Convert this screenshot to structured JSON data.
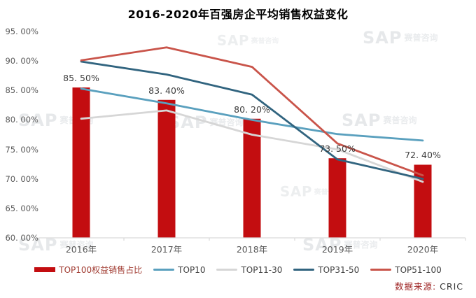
{
  "chart_data": {
    "type": "combo_bar_line",
    "title": "2016-2020年百强房企平均销售权益变化",
    "categories": [
      "2016年",
      "2017年",
      "2018年",
      "2019年",
      "2020年"
    ],
    "y_axis": {
      "range": [
        60,
        95
      ],
      "ticks": [
        {
          "value": 95,
          "label": "95. 00%"
        },
        {
          "value": 90,
          "label": "90. 00%"
        },
        {
          "value": 85,
          "label": "85. 00%"
        },
        {
          "value": 80,
          "label": "80. 00%"
        },
        {
          "value": 75,
          "label": "75. 00%"
        },
        {
          "value": 70,
          "label": "70. 00%"
        },
        {
          "value": 65,
          "label": "65. 00%"
        },
        {
          "value": 60,
          "label": "60. 00%"
        }
      ]
    },
    "grid": false,
    "legend_position": "bottom",
    "axis_color": "#d9d9d9",
    "bar_series": {
      "name": "TOP100权益销售占比",
      "color": "#c30d10",
      "label_color": "#a03a30",
      "values": [
        85.5,
        83.4,
        80.2,
        73.5,
        72.4
      ],
      "labels": [
        "85. 50%",
        "83. 40%",
        "80. 20%",
        "73. 50%",
        "72. 40%"
      ]
    },
    "line_series": [
      {
        "name": "TOP10",
        "color": "#5aa0be",
        "label_color": "#404040",
        "values": [
          85.3,
          82.8,
          80.0,
          77.6,
          76.5
        ]
      },
      {
        "name": "TOP11-30",
        "color": "#d6d6d6",
        "label_color": "#404040",
        "values": [
          80.2,
          81.6,
          77.5,
          75.0,
          69.5
        ]
      },
      {
        "name": "TOP31-50",
        "color": "#31647f",
        "label_color": "#404040",
        "values": [
          89.9,
          87.7,
          84.3,
          73.3,
          70.0
        ]
      },
      {
        "name": "TOP51-100",
        "color": "#c9544a",
        "label_color": "#404040",
        "values": [
          90.1,
          92.3,
          89.0,
          76.0,
          70.6
        ]
      }
    ]
  },
  "source": {
    "label": "数据来源:",
    "value": "CRIC"
  },
  "watermark": {
    "brand": "SAP",
    "name": "赛普咨询"
  }
}
